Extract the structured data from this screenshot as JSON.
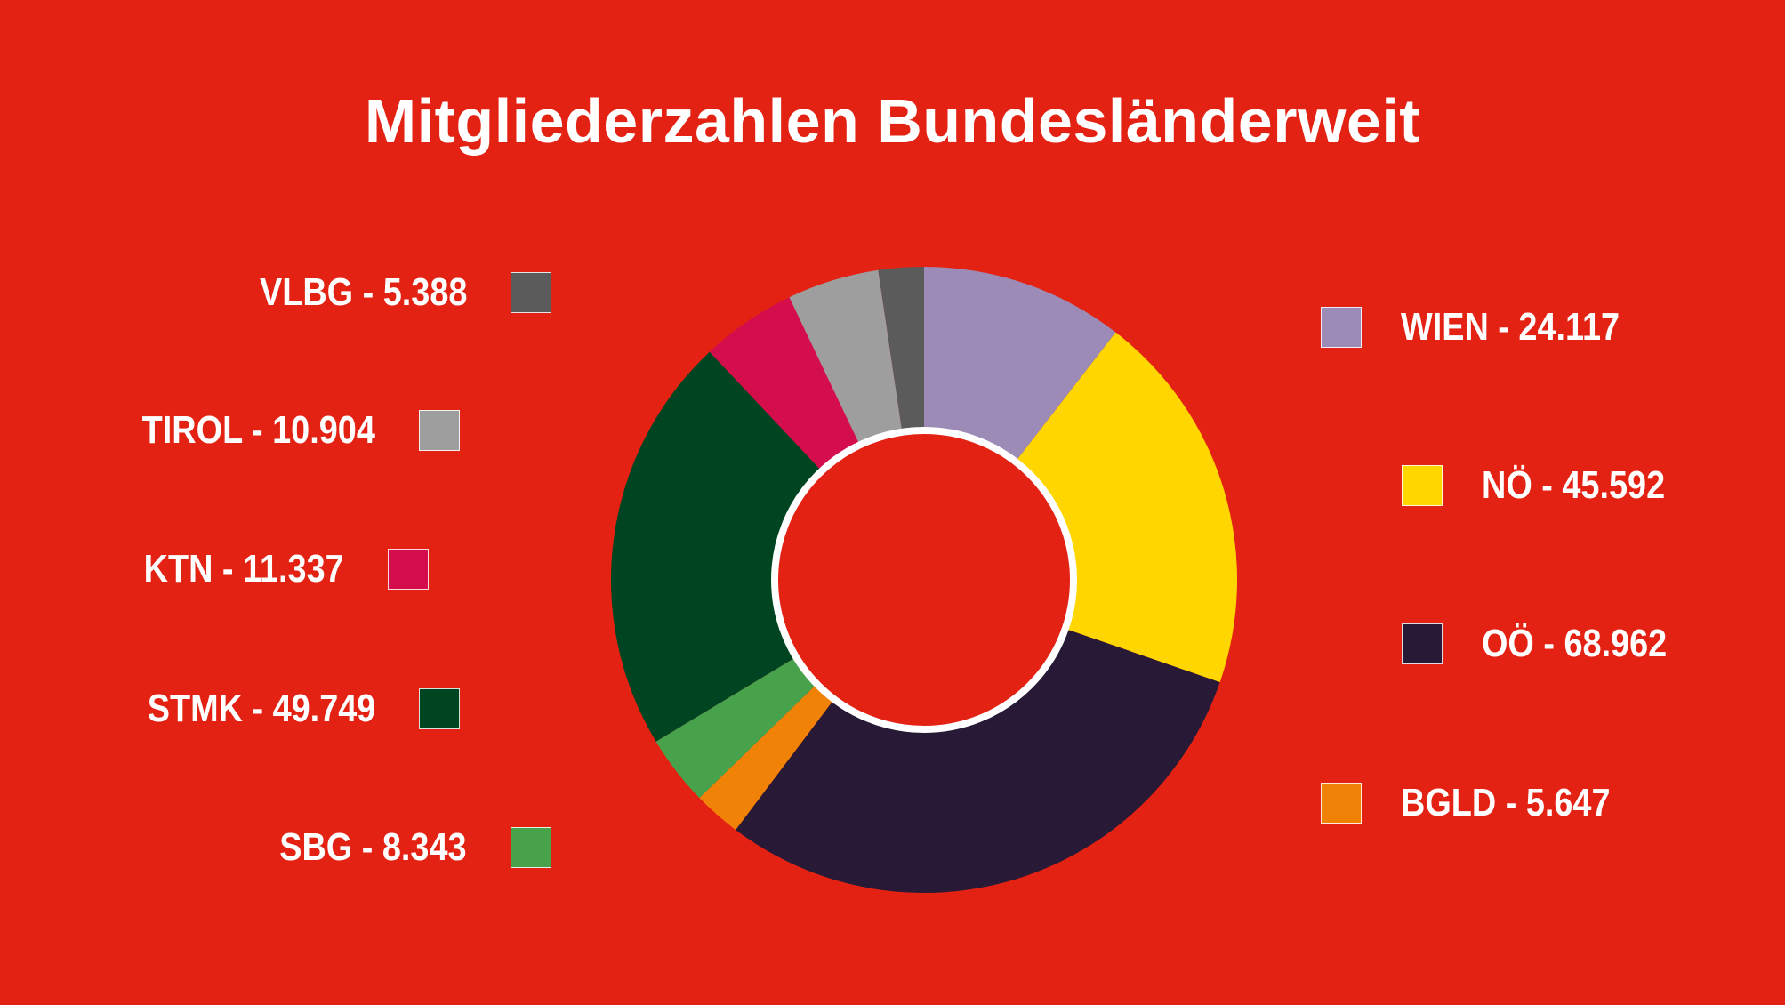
{
  "chart_data": {
    "type": "pie",
    "title": "Mitgliederzahlen Bundesländerweit",
    "donut": true,
    "slices": [
      {
        "name": "WIEN",
        "label": "WIEN - 24.117",
        "value": 24117,
        "color": "#9b8bb6"
      },
      {
        "name": "NÖ",
        "label": "NÖ - 45.592",
        "value": 45592,
        "color": "#ffd600"
      },
      {
        "name": "OÖ",
        "label": "OÖ - 68.962",
        "value": 68962,
        "color": "#281a36"
      },
      {
        "name": "BGLD",
        "label": "BGLD - 5.647",
        "value": 5647,
        "color": "#f08208"
      },
      {
        "name": "SBG",
        "label": "SBG - 8.343",
        "value": 8343,
        "color": "#48a14b"
      },
      {
        "name": "STMK",
        "label": "STMK - 49.749",
        "value": 49749,
        "color": "#004521"
      },
      {
        "name": "KTN",
        "label": "KTN - 11.337",
        "value": 11337,
        "color": "#d40d4d"
      },
      {
        "name": "TIROL",
        "label": "TIROL - 10.904",
        "value": 10904,
        "color": "#9e9e9e"
      },
      {
        "name": "VLBG",
        "label": "VLBG - 5.388",
        "value": 5388,
        "color": "#5b5b5b"
      }
    ],
    "legend_left": [
      "VLBG",
      "TIROL",
      "KTN",
      "STMK",
      "SBG"
    ],
    "legend_right": [
      "WIEN",
      "NÖ",
      "OÖ",
      "BGLD"
    ]
  },
  "colors": {
    "background": "#e32213",
    "text": "#ffffff",
    "center_ring": "#ffffff"
  }
}
